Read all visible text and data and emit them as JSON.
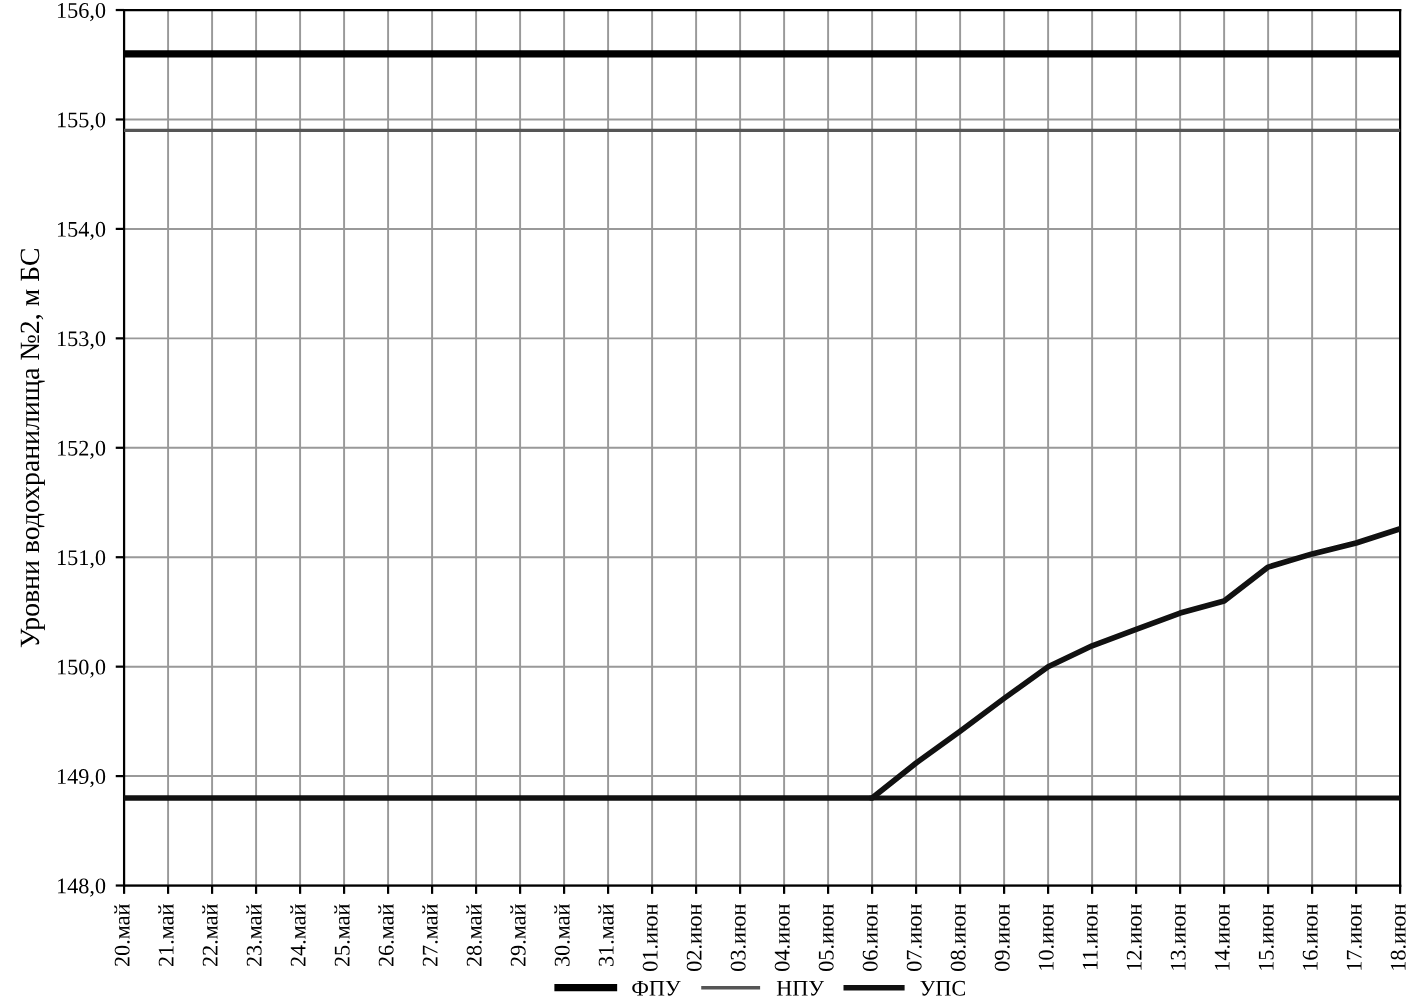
{
  "chart_data": {
    "type": "line",
    "ylabel": "Уровни водохранилища №2, м БС",
    "categories": [
      "20.май",
      "21.май",
      "22.май",
      "23.май",
      "24.май",
      "25.май",
      "26.май",
      "27.май",
      "28.май",
      "29.май",
      "30.май",
      "31.май",
      "01.июн",
      "02.июн",
      "03.июн",
      "04.июн",
      "05.июн",
      "06.июн",
      "07.июн",
      "08.июн",
      "09.июн",
      "10.июн",
      "11.июн",
      "12.июн",
      "13.июн",
      "14.июн",
      "15.июн",
      "16.июн",
      "17.июн",
      "18.июн"
    ],
    "series": [
      {
        "name": "ФПУ",
        "color": "#000000",
        "values": [
          155.6,
          155.6,
          155.6,
          155.6,
          155.6,
          155.6,
          155.6,
          155.6,
          155.6,
          155.6,
          155.6,
          155.6,
          155.6,
          155.6,
          155.6,
          155.6,
          155.6,
          155.6,
          155.6,
          155.6,
          155.6,
          155.6,
          155.6,
          155.6,
          155.6,
          155.6,
          155.6,
          155.6,
          155.6,
          155.6
        ]
      },
      {
        "name": "НПУ",
        "color": "#555555",
        "values": [
          154.9,
          154.9,
          154.9,
          154.9,
          154.9,
          154.9,
          154.9,
          154.9,
          154.9,
          154.9,
          154.9,
          154.9,
          154.9,
          154.9,
          154.9,
          154.9,
          154.9,
          154.9,
          154.9,
          154.9,
          154.9,
          154.9,
          154.9,
          154.9,
          154.9,
          154.9,
          154.9,
          154.9,
          154.9,
          154.9
        ]
      },
      {
        "name": "УПС",
        "color": "#111111",
        "values": [
          148.8,
          148.8,
          148.8,
          148.8,
          148.8,
          148.8,
          148.8,
          148.8,
          148.8,
          148.8,
          148.8,
          148.8,
          148.8,
          148.8,
          148.8,
          148.8,
          148.8,
          148.8,
          149.12,
          149.41,
          149.71,
          150.0,
          150.19,
          150.34,
          150.49,
          150.6,
          150.91,
          151.03,
          151.13,
          151.26
        ]
      },
      {
        "color": "#111111",
        "values": [
          null,
          null,
          null,
          null,
          null,
          null,
          null,
          null,
          null,
          null,
          null,
          null,
          null,
          null,
          null,
          null,
          null,
          148.8,
          148.8,
          148.8,
          148.8,
          148.8,
          148.8,
          148.8,
          148.8,
          148.8,
          148.8,
          148.8,
          148.8,
          148.8
        ]
      }
    ],
    "ylim": [
      148,
      156
    ],
    "yticks": [
      {
        "value": 148,
        "label": "148,0"
      },
      {
        "value": 149,
        "label": "149,0"
      },
      {
        "value": 150,
        "label": "150,0"
      },
      {
        "value": 151,
        "label": "151,0"
      },
      {
        "value": 152,
        "label": "152,0"
      },
      {
        "value": 153,
        "label": "153,0"
      },
      {
        "value": 154,
        "label": "154,0"
      },
      {
        "value": 155,
        "label": "155,0"
      },
      {
        "value": 156,
        "label": "156,0"
      }
    ],
    "grid": true,
    "legend": "bottom",
    "line_style": "solid",
    "marker": "none"
  }
}
